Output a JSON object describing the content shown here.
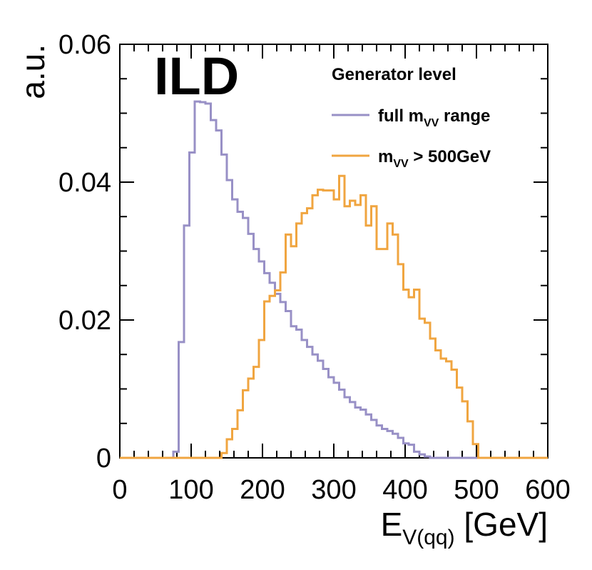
{
  "chart_data": {
    "type": "line",
    "style": "step-histogram",
    "title": "",
    "experiment_label": "ILD",
    "legend_title": "Generator level",
    "legend_position": "top-right",
    "xlabel": {
      "main": "E",
      "subscript": "V(qq)",
      "suffix": " [GeV]"
    },
    "ylabel": "a.u.",
    "xlim": [
      0,
      600
    ],
    "ylim": [
      0,
      0.06
    ],
    "xticks": [
      0,
      100,
      200,
      300,
      400,
      500,
      600
    ],
    "xtick_labels": [
      "0",
      "100",
      "200",
      "300",
      "400",
      "500",
      "600"
    ],
    "yticks": [
      0,
      0.02,
      0.04,
      0.06
    ],
    "ytick_labels": [
      "0",
      "0.02",
      "0.04",
      "0.06"
    ],
    "bin_width": 7.5,
    "series": [
      {
        "name": "full m_VV range",
        "label_main": "full m",
        "label_sub": "VV",
        "label_suffix": " range",
        "color": "#9890c6",
        "bin_start": 0,
        "values": [
          0,
          0,
          0,
          0,
          0,
          0,
          0,
          0,
          0,
          0,
          0.0009,
          0.0168,
          0.0337,
          0.0443,
          0.0517,
          0.0516,
          0.0514,
          0.049,
          0.0475,
          0.044,
          0.0403,
          0.0375,
          0.0357,
          0.0348,
          0.0325,
          0.0303,
          0.0285,
          0.0268,
          0.0254,
          0.0238,
          0.0226,
          0.0213,
          0.0191,
          0.0186,
          0.0171,
          0.0161,
          0.015,
          0.0141,
          0.0129,
          0.0117,
          0.0109,
          0.0099,
          0.0088,
          0.0081,
          0.0073,
          0.007,
          0.0063,
          0.0055,
          0.0047,
          0.0042,
          0.0039,
          0.0035,
          0.0029,
          0.0021,
          0.0019,
          0.0009,
          0.0005,
          0.0002,
          0,
          0,
          0,
          0,
          0,
          0,
          0,
          0,
          0,
          0,
          0,
          0,
          0,
          0,
          0,
          0,
          0,
          0,
          0,
          0,
          0,
          0
        ]
      },
      {
        "name": "m_VV > 500GeV",
        "label_main": "m",
        "label_sub": "VV",
        "label_suffix": " > 500GeV",
        "color": "#f0a540",
        "bin_start": 0,
        "values": [
          0,
          0,
          0,
          0,
          0,
          0,
          0,
          0,
          0,
          0,
          0,
          0,
          0,
          0,
          0,
          0,
          0,
          0,
          0,
          0.0007,
          0.0027,
          0.0042,
          0.0069,
          0.0098,
          0.0115,
          0.0132,
          0.0171,
          0.0227,
          0.0235,
          0.0243,
          0.0269,
          0.0324,
          0.0307,
          0.034,
          0.0355,
          0.0362,
          0.0381,
          0.0389,
          0.0388,
          0.0388,
          0.0375,
          0.0409,
          0.0365,
          0.0373,
          0.0367,
          0.0381,
          0.0337,
          0.0365,
          0.0303,
          0.0303,
          0.034,
          0.0324,
          0.0281,
          0.0244,
          0.0233,
          0.0244,
          0.0202,
          0.0196,
          0.0173,
          0.0156,
          0.0144,
          0.014,
          0.0128,
          0.0102,
          0.0082,
          0.0053,
          0.002,
          0,
          0,
          0,
          0,
          0,
          0,
          0,
          0,
          0,
          0,
          0,
          0,
          0
        ]
      }
    ]
  }
}
